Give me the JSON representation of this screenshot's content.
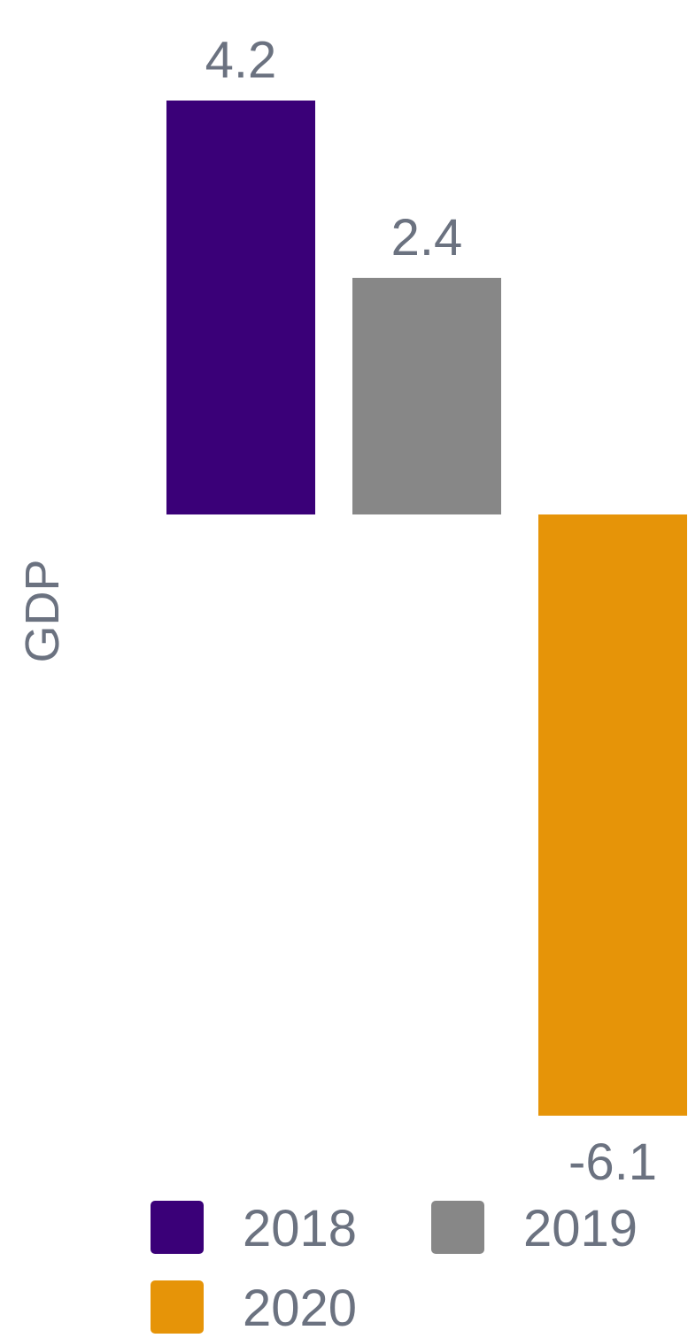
{
  "chart_data": {
    "type": "bar",
    "ylabel": "GDP",
    "xlabel": "",
    "title": "",
    "categories": [
      "2018",
      "2019",
      "2020"
    ],
    "values": [
      4.2,
      2.4,
      -6.1
    ],
    "data_labels": [
      "4.2",
      "2.4",
      "-6.1"
    ],
    "colors": [
      "#3a0078",
      "#878787",
      "#e69408"
    ],
    "ylim": [
      -6.1,
      4.2
    ],
    "grid": false,
    "legend": {
      "placement": "bottom",
      "entries": [
        {
          "label": "2018",
          "color": "#3a0078"
        },
        {
          "label": "2019",
          "color": "#878787"
        },
        {
          "label": "2020",
          "color": "#e69408"
        }
      ]
    }
  }
}
